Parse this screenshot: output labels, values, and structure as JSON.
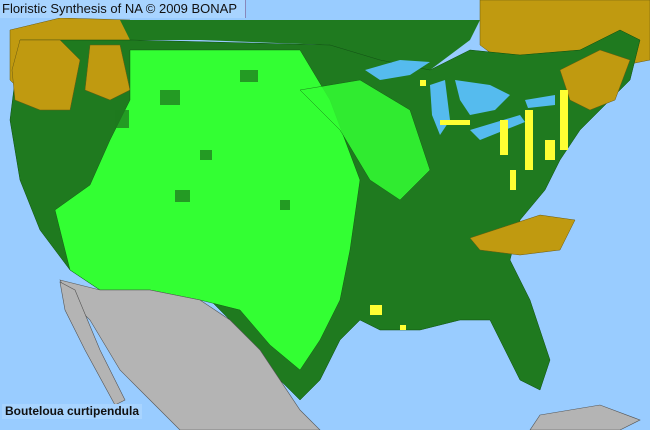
{
  "header": {
    "title": "Floristic Synthesis of NA © 2009 BONAP"
  },
  "map": {
    "species": "Bouteloua curtipendula",
    "region": "North America (USA, southern Canada, northern Mexico)",
    "colors": {
      "ocean": "#99ccff",
      "lakes": "#55bbee",
      "present_state_not_county": "#1f7a1f",
      "present_county": "#33ff33",
      "not_present_state": "#c09a10",
      "rare_or_extirpated": "#ffff33",
      "outside_coverage": "#b4b4b4"
    }
  }
}
